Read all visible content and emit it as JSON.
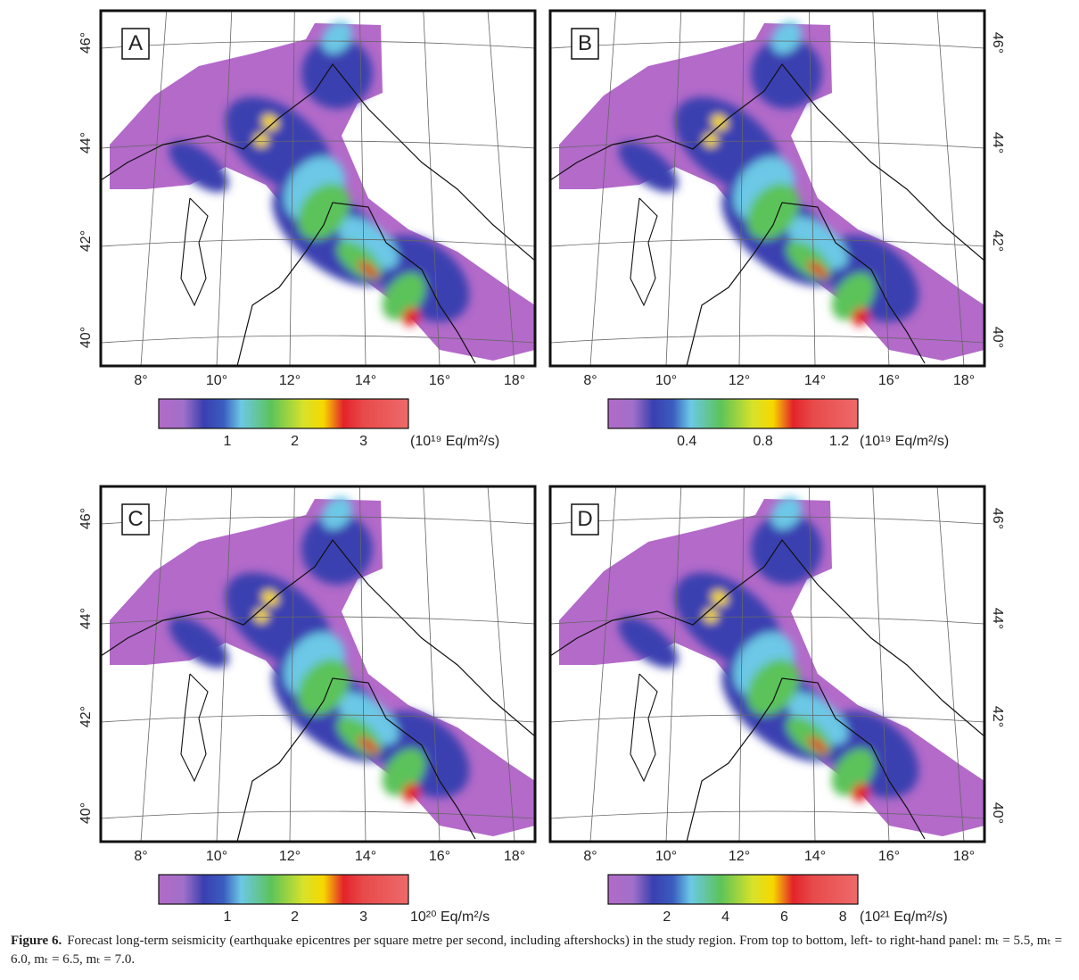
{
  "panels": [
    {
      "label": "A",
      "lat_ticks": [
        "46°",
        "44°",
        "42°",
        "40°"
      ],
      "lon_ticks": [
        "8°",
        "10°",
        "12°",
        "14°",
        "16°",
        "18°"
      ],
      "colorbar": {
        "ticks": [
          1,
          2,
          3
        ],
        "unit": "(10¹⁹ Eq/m²/s)"
      }
    },
    {
      "label": "B",
      "lat_ticks": [
        "46°",
        "44°",
        "42°",
        "40°"
      ],
      "lon_ticks": [
        "8°",
        "10°",
        "12°",
        "14°",
        "16°",
        "18°"
      ],
      "colorbar": {
        "ticks": [
          0.4,
          0.8,
          1.2
        ],
        "unit": "(10¹⁹ Eq/m²/s)"
      }
    },
    {
      "label": "C",
      "lat_ticks": [
        "46°",
        "44°",
        "42°",
        "40°"
      ],
      "lon_ticks": [
        "8°",
        "10°",
        "12°",
        "14°",
        "16°",
        "18°"
      ],
      "colorbar": {
        "ticks": [
          1,
          2,
          3
        ],
        "unit": "10²⁰ Eq/m²/s"
      }
    },
    {
      "label": "D",
      "lat_ticks": [
        "46°",
        "44°",
        "42°",
        "40°"
      ],
      "lon_ticks": [
        "8°",
        "10°",
        "12°",
        "14°",
        "16°",
        "18°"
      ],
      "colorbar": {
        "ticks": [
          2,
          4,
          6,
          8
        ],
        "unit": "(10²¹ Eq/m²/s)"
      }
    }
  ],
  "caption": {
    "label": "Figure 6.",
    "text": "Forecast long-term seismicity (earthquake epicentres per square metre per second, including aftershocks) in the study region. From top to bottom, left- to right-hand panel: mₜ = 5.5, mₜ = 6.0, mₜ = 6.5, mₜ = 7.0."
  }
}
